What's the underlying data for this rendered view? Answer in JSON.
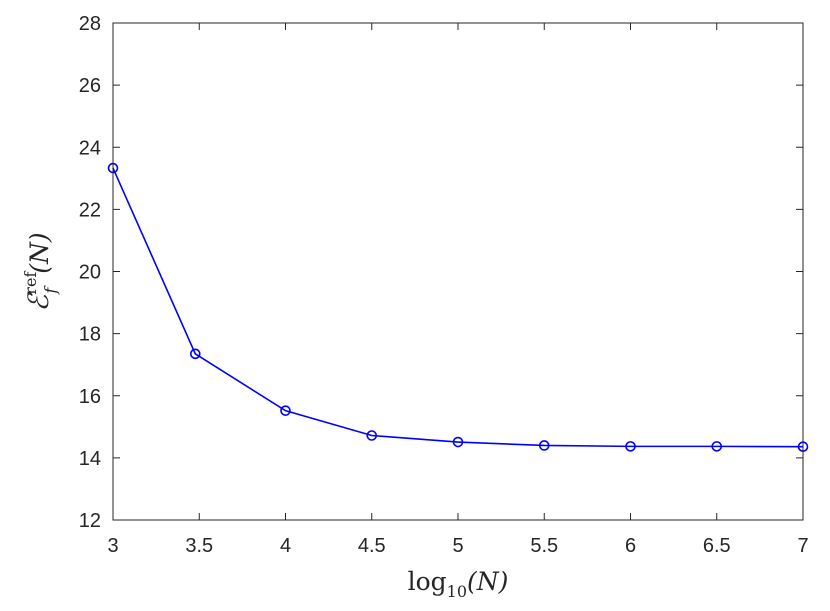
{
  "chart_data": {
    "type": "line",
    "title": "",
    "x_axis": {
      "label": {
        "func": "log",
        "sub": "10",
        "arg": "(N)"
      },
      "range": [
        3,
        7
      ],
      "ticks": [
        3,
        3.5,
        4,
        4.5,
        5,
        5.5,
        6,
        6.5,
        7
      ],
      "tick_labels": [
        "3",
        "3.5",
        "4",
        "4.5",
        "5",
        "5.5",
        "6",
        "6.5",
        "7"
      ]
    },
    "y_axis": {
      "label": {
        "symbol": "ℰ",
        "sup": "ref",
        "sub": "f",
        "arg": "(N)"
      },
      "range": [
        12,
        28
      ],
      "ticks": [
        12,
        14,
        16,
        18,
        20,
        22,
        24,
        26,
        28
      ],
      "tick_labels": [
        "12",
        "14",
        "16",
        "18",
        "20",
        "22",
        "24",
        "26",
        "28"
      ]
    },
    "grid": false,
    "series": [
      {
        "color": "#0000ff",
        "marker": "circle",
        "x": [
          3,
          3.477,
          4,
          4.5,
          5,
          5.5,
          6,
          6.5,
          7
        ],
        "y": [
          23.33,
          17.35,
          15.52,
          14.72,
          14.51,
          14.4,
          14.37,
          14.37,
          14.36
        ]
      }
    ]
  }
}
